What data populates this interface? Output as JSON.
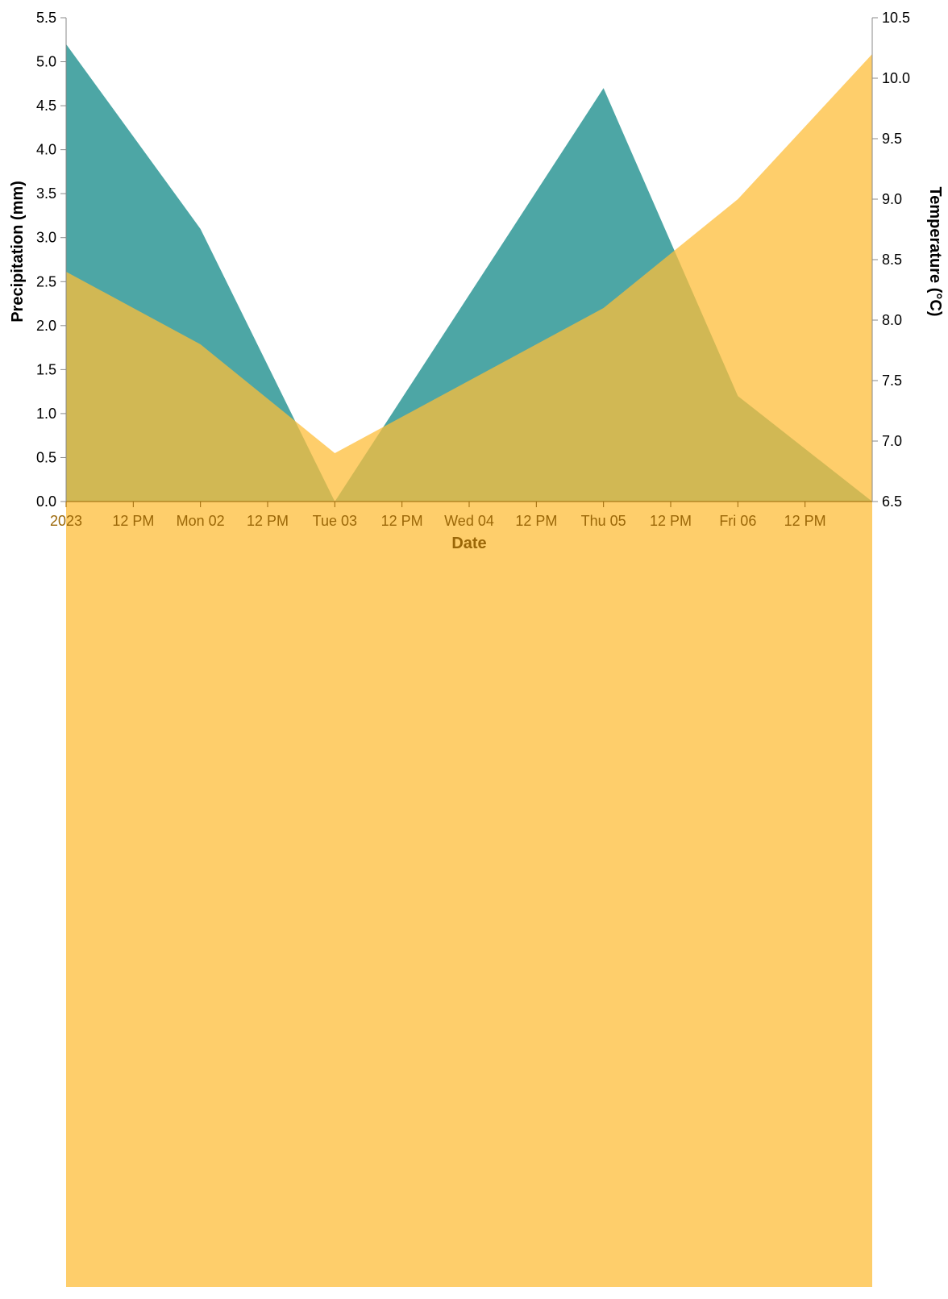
{
  "chart_data": {
    "type": "area",
    "title": "",
    "xlabel": "Date",
    "ylabel_left": "Precipitation (mm)",
    "ylabel_right": "Temperature (°C)",
    "x_start": "2023-01-01T00:00",
    "x_end": "2023-01-07T00:00",
    "x_ticks": [
      {
        "x": "2023-01-01T00:00",
        "label": "2023"
      },
      {
        "x": "2023-01-01T12:00",
        "label": "12 PM"
      },
      {
        "x": "2023-01-02T00:00",
        "label": "Mon 02"
      },
      {
        "x": "2023-01-02T12:00",
        "label": "12 PM"
      },
      {
        "x": "2023-01-03T00:00",
        "label": "Tue 03"
      },
      {
        "x": "2023-01-03T12:00",
        "label": "12 PM"
      },
      {
        "x": "2023-01-04T00:00",
        "label": "Wed 04"
      },
      {
        "x": "2023-01-04T12:00",
        "label": "12 PM"
      },
      {
        "x": "2023-01-05T00:00",
        "label": "Thu 05"
      },
      {
        "x": "2023-01-05T12:00",
        "label": "12 PM"
      },
      {
        "x": "2023-01-06T00:00",
        "label": "Fri 06"
      },
      {
        "x": "2023-01-06T12:00",
        "label": "12 PM"
      }
    ],
    "y_left": {
      "ylim": [
        0,
        5.5
      ],
      "ticks": [
        "0.0",
        "0.5",
        "1.0",
        "1.5",
        "2.0",
        "2.5",
        "3.0",
        "3.5",
        "4.0",
        "4.5",
        "5.0",
        "5.5"
      ]
    },
    "y_right": {
      "ylim": [
        6.5,
        10.5
      ],
      "ticks": [
        "6.5",
        "7.0",
        "7.5",
        "8.0",
        "8.5",
        "9.0",
        "9.5",
        "10.0",
        "10.5"
      ]
    },
    "series": [
      {
        "axis": "left",
        "color": "#20908e",
        "x": [
          "2023-01-01T00:00",
          "2023-01-02T00:00",
          "2023-01-03T00:00",
          "2023-01-05T00:00",
          "2023-01-06T00:00",
          "2023-01-07T00:00"
        ],
        "values": [
          5.2,
          3.1,
          0.0,
          4.7,
          1.2,
          0.0
        ]
      },
      {
        "axis": "right",
        "color": "#fdbd3a",
        "x": [
          "2023-01-01T00:00",
          "2023-01-02T00:00",
          "2023-01-03T00:00",
          "2023-01-05T00:00",
          "2023-01-06T00:00",
          "2023-01-07T00:00"
        ],
        "values": [
          8.4,
          7.8,
          6.9,
          8.1,
          9.0,
          10.2
        ]
      }
    ],
    "x_axis_color": "#9b6707",
    "y_axis_color": "#000000",
    "grid": false,
    "legend": "none"
  }
}
